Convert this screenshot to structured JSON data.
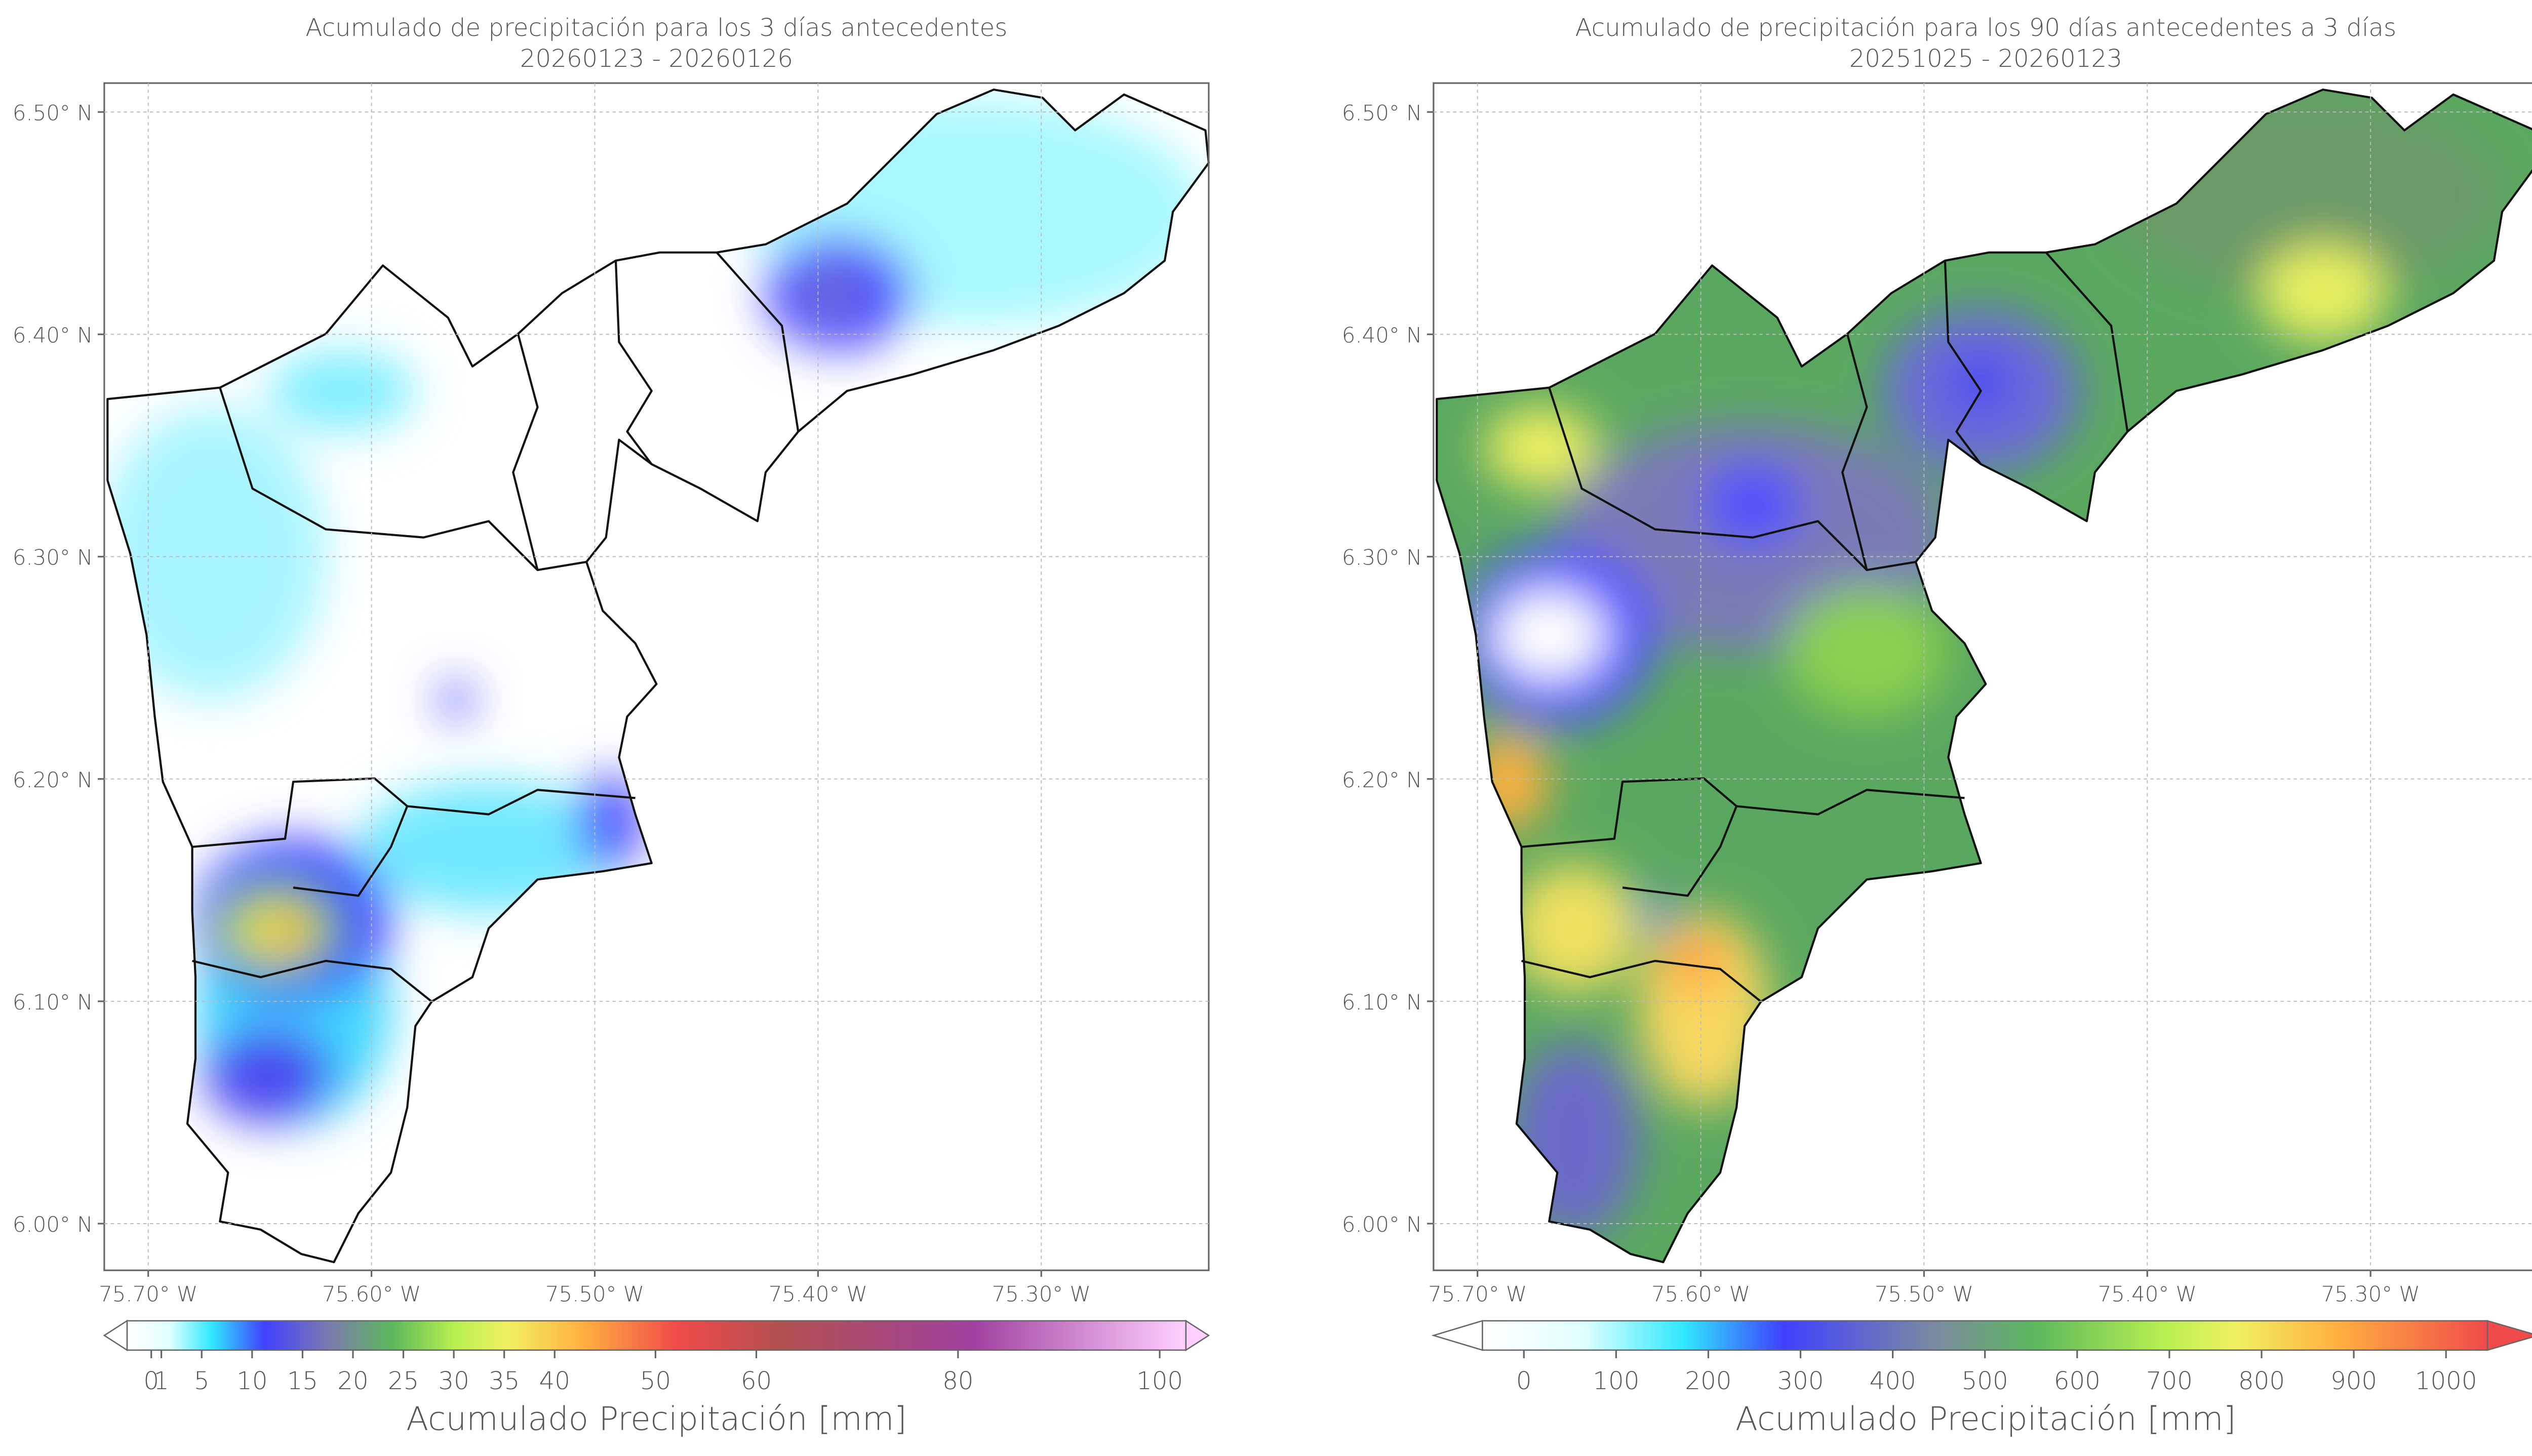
{
  "maps": [
    {
      "title": "Acumulado de precipitación para los 3 días antecedentes",
      "subtitle": "20260123 - 20260126",
      "xlim": [
        -75.7197,
        -75.225
      ],
      "ylim": [
        5.979,
        6.513
      ],
      "xticks": [
        {
          "value": -75.7,
          "label": "75.70° W"
        },
        {
          "value": -75.6,
          "label": "75.60° W"
        },
        {
          "value": -75.5,
          "label": "75.50° W"
        },
        {
          "value": -75.4,
          "label": "75.40° W"
        },
        {
          "value": -75.3,
          "label": "75.30° W"
        }
      ],
      "yticks": [
        {
          "value": 6.5,
          "label": "6.50° N"
        },
        {
          "value": 6.4,
          "label": "6.40° N"
        },
        {
          "value": 6.3,
          "label": "6.30° N"
        },
        {
          "value": 6.2,
          "label": "6.20° N"
        },
        {
          "value": 6.1,
          "label": "6.10° N"
        },
        {
          "value": 6.0,
          "label": "6.00° N"
        }
      ],
      "colorbar": {
        "label": "Acumulado Precipitación [mm]",
        "lim": [
          -2.4,
          102.6
        ],
        "ticks": [
          0,
          1,
          5,
          10,
          15,
          20,
          25,
          30,
          35,
          40,
          50,
          60,
          80,
          100
        ]
      }
    },
    {
      "title": "Acumulado de precipitación para los 90 días antecedentes a 3 días",
      "subtitle": "20251025 - 20260123",
      "xlim": [
        -75.7197,
        -75.225
      ],
      "ylim": [
        5.979,
        6.513
      ],
      "xticks": [
        {
          "value": -75.7,
          "label": "75.70° W"
        },
        {
          "value": -75.6,
          "label": "75.60° W"
        },
        {
          "value": -75.5,
          "label": "75.50° W"
        },
        {
          "value": -75.4,
          "label": "75.40° W"
        },
        {
          "value": -75.3,
          "label": "75.30° W"
        }
      ],
      "yticks": [
        {
          "value": 6.5,
          "label": "6.50° N"
        },
        {
          "value": 6.4,
          "label": "6.40° N"
        },
        {
          "value": 6.3,
          "label": "6.30° N"
        },
        {
          "value": 6.2,
          "label": "6.20° N"
        },
        {
          "value": 6.1,
          "label": "6.10° N"
        },
        {
          "value": 6.0,
          "label": "6.00° N"
        }
      ],
      "colorbar": {
        "label": "Acumulado Precipitación [mm]",
        "lim": [
          -45,
          1045
        ],
        "ticks": [
          0,
          100,
          200,
          300,
          400,
          500,
          600,
          700,
          800,
          900,
          1000
        ]
      }
    }
  ]
}
